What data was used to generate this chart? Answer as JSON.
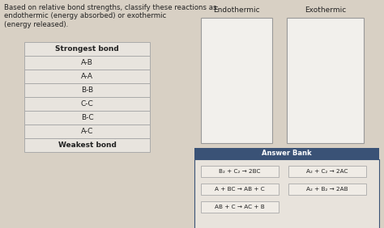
{
  "title_text": "Based on relative bond strengths, classify these reactions as\nendothermic (energy absorbed) or exothermic\n(energy released).",
  "table_header": "Strongest bond",
  "table_rows": [
    "A-B",
    "A-A",
    "B-B",
    "C-C",
    "B-C",
    "A-C"
  ],
  "table_footer": "Weakest bond",
  "endothermic_label": "Endothermic",
  "exothermic_label": "Exothermic",
  "answer_bank_label": "Answer Bank",
  "answer_bank_bg": "#3a5276",
  "answer_items": [
    [
      "B₂ + C₂ → 2BC",
      "A₂ + C₂ → 2AC"
    ],
    [
      "A + BC → AB + C",
      "A₂ + B₂ → 2AB"
    ],
    [
      "AB + C → AC + B",
      ""
    ]
  ],
  "bg_color": "#d8d0c4",
  "table_bg": "#e8e4de",
  "table_border": "#aaaaaa",
  "box_bg": "#f2f0ec",
  "box_border": "#999999",
  "answer_item_bg": "#f0ece6",
  "answer_item_border": "#aaaaaa",
  "answer_bank_outer_bg": "#e8e3dc",
  "answer_bank_outer_border": "#3a5276",
  "text_color": "#222222"
}
